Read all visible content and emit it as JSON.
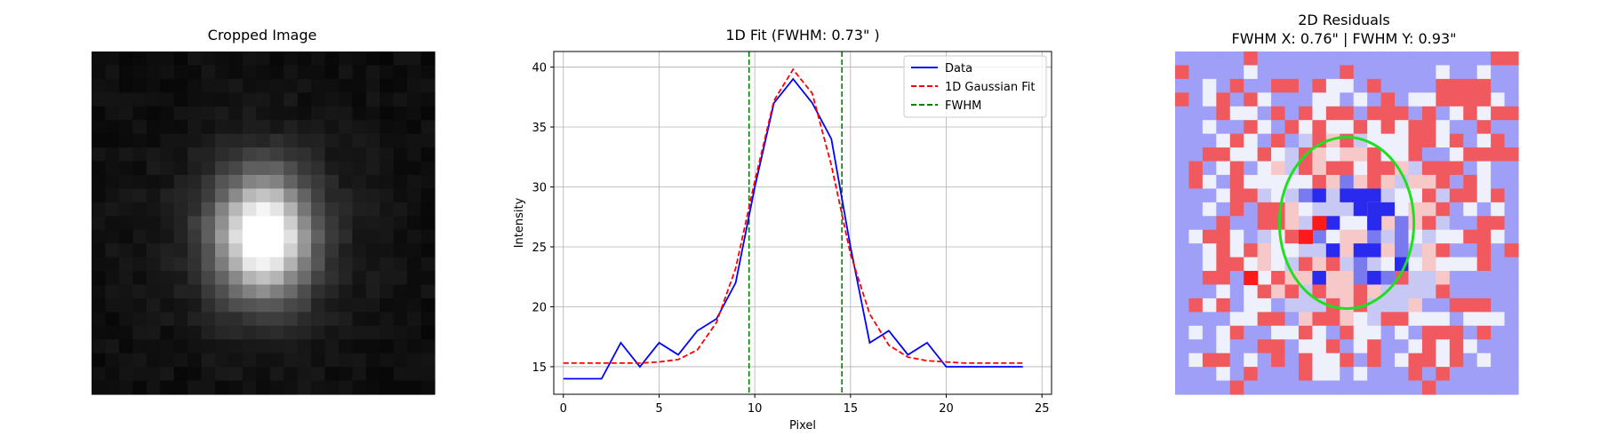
{
  "chart_data": [
    {
      "type": "heatmap",
      "title": "Cropped Image",
      "colormap": "gray",
      "axes": "off",
      "grid_size": [
        25,
        25
      ],
      "description_values": "pixel intensity, 0 = black, 1 = white",
      "blob_center": [
        12,
        13
      ],
      "blob_peak": 1.0
    },
    {
      "type": "line",
      "title": "1D Fit (FWHM: 0.73\" )",
      "xlabel": "Pixel",
      "ylabel": "Intensity",
      "xlim": [
        -0.5,
        25.5
      ],
      "ylim": [
        12.7,
        41.3
      ],
      "xticks": [
        0,
        5,
        10,
        15,
        20,
        25
      ],
      "yticks": [
        15,
        20,
        25,
        30,
        35,
        40
      ],
      "grid": true,
      "legend_loc": "upper right",
      "x": [
        0,
        1,
        2,
        3,
        4,
        5,
        6,
        7,
        8,
        9,
        10,
        11,
        12,
        13,
        14,
        15,
        16,
        17,
        18,
        19,
        20,
        21,
        22,
        23,
        24
      ],
      "series": [
        {
          "name": "Data",
          "color": "#0000ff",
          "style": "solid",
          "values": [
            14,
            14,
            14,
            17,
            15,
            17,
            16,
            18,
            19,
            22,
            30,
            37,
            39,
            37,
            34,
            25,
            17,
            18,
            16,
            17,
            15,
            15,
            15,
            15,
            15
          ]
        },
        {
          "name": "1D Gaussian Fit",
          "color": "#ff0000",
          "style": "dashed",
          "values": [
            15.3,
            15.3,
            15.3,
            15.3,
            15.3,
            15.4,
            15.6,
            16.4,
            18.7,
            23.2,
            30.5,
            37.2,
            39.8,
            37.8,
            31.8,
            24.4,
            19.4,
            16.8,
            15.8,
            15.5,
            15.4,
            15.3,
            15.3,
            15.3,
            15.3
          ]
        },
        {
          "name": "FWHM",
          "color": "#008000",
          "style": "dashed",
          "vlines": [
            9.7,
            14.55
          ]
        }
      ]
    },
    {
      "type": "heatmap",
      "title": "2D Residuals",
      "subtitle": "FWHM X: 0.76\"  |  FWHM Y: 0.93\"",
      "colormap": "bwr",
      "axes": "off",
      "grid_size": [
        25,
        25
      ],
      "ellipse": {
        "center": [
          12.5,
          12.5
        ],
        "width": 9.8,
        "height": 12.5,
        "color": "#22dd22"
      }
    }
  ]
}
